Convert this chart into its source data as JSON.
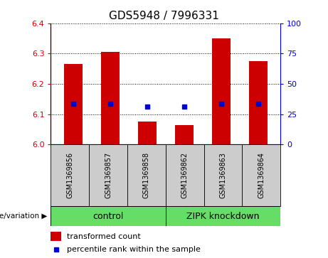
{
  "title": "GDS5948 / 7996331",
  "samples": [
    "GSM1369856",
    "GSM1369857",
    "GSM1369858",
    "GSM1369862",
    "GSM1369863",
    "GSM1369864"
  ],
  "bar_values": [
    6.265,
    6.305,
    6.075,
    6.065,
    6.35,
    6.275
  ],
  "percentile_values": [
    6.135,
    6.135,
    6.125,
    6.125,
    6.135,
    6.135
  ],
  "ylim_left": [
    6.0,
    6.4
  ],
  "ylim_right": [
    0,
    100
  ],
  "yticks_left": [
    6.0,
    6.1,
    6.2,
    6.3,
    6.4
  ],
  "yticks_right": [
    0,
    25,
    50,
    75,
    100
  ],
  "control_samples": [
    0,
    1,
    2
  ],
  "knockdown_samples": [
    3,
    4,
    5
  ],
  "control_label": "control",
  "knockdown_label": "ZIPK knockdown",
  "group_color": "#66DD66",
  "sample_box_color": "#CCCCCC",
  "bar_color": "#CC0000",
  "percentile_color": "#0000CC",
  "bar_width": 0.5,
  "left_label_color": "#CC0000",
  "right_label_color": "#0000CC",
  "genotype_label": "genotype/variation",
  "legend_bar_label": "transformed count",
  "legend_pct_label": "percentile rank within the sample",
  "title_fontsize": 11,
  "tick_fontsize": 8,
  "label_fontsize": 8
}
